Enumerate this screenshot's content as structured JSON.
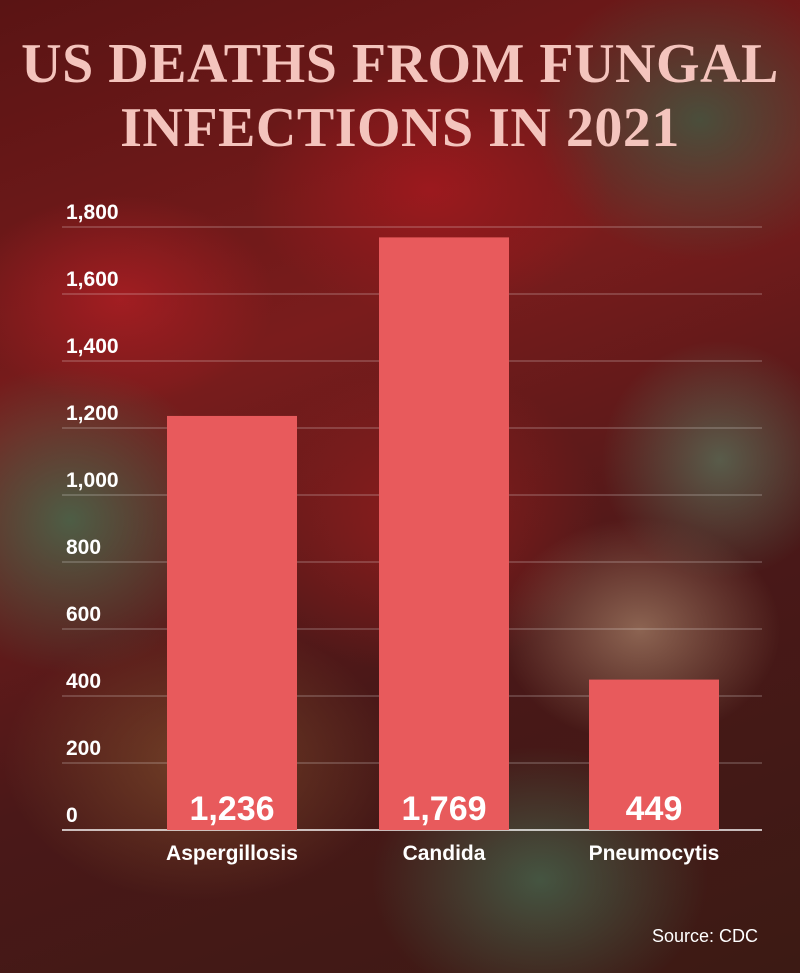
{
  "title": "US DEATHS FROM FUNGAL INFECTIONS IN 2021",
  "source": "Source: CDC",
  "colors": {
    "bar": "#e85a5c",
    "title": "#f4c4bd",
    "text": "#ffffff",
    "gridline": "#ffffff"
  },
  "chart_data": {
    "type": "bar",
    "title": "US DEATHS FROM FUNGAL INFECTIONS IN 2021",
    "categories": [
      "Aspergillosis",
      "Candida",
      "Pneumocytis"
    ],
    "values": [
      1236,
      1769,
      449
    ],
    "data_labels": [
      "1,236",
      "1,769",
      "449"
    ],
    "ylim": [
      0,
      1800
    ],
    "yticks": [
      0,
      200,
      400,
      600,
      800,
      1000,
      1200,
      1400,
      1600,
      1800
    ],
    "ytick_labels": [
      "0",
      "200",
      "400",
      "600",
      "800",
      "1,000",
      "1,200",
      "1,400",
      "1,600",
      "1,800"
    ],
    "grid": true,
    "legend": "none",
    "xlabel": "",
    "ylabel": ""
  }
}
